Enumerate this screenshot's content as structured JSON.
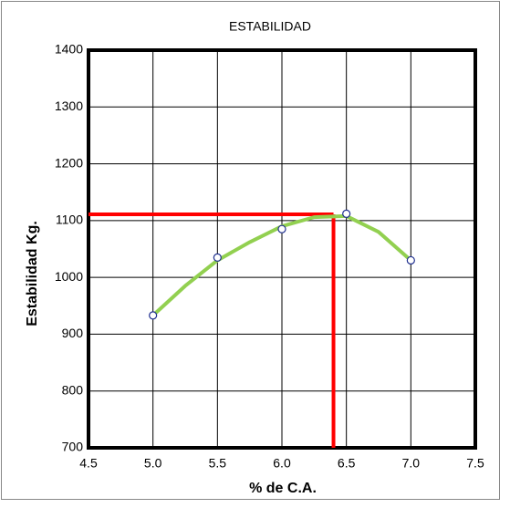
{
  "chart_data": {
    "type": "scatter",
    "title": "ESTABILIDAD",
    "x_label": "% de  C.A.",
    "y_label": "Estabilidad  Kg.",
    "xlim": [
      4.5,
      7.5
    ],
    "ylim": [
      700,
      1400
    ],
    "xticks": [
      4.5,
      {
        "value": 5,
        "label": "5.0"
      },
      5.5,
      {
        "value": 6,
        "label": "6.0"
      },
      6.5,
      {
        "value": 7,
        "label": "7.0"
      },
      7.5
    ],
    "yticks": [
      700,
      800,
      900,
      1000,
      1100,
      1200,
      1300,
      1400
    ],
    "grid": true,
    "series": [
      {
        "color": "#1f2f8f",
        "x": [
          5.0,
          5.5,
          6.0,
          6.5,
          7.0
        ],
        "values": [
          933,
          1035,
          1085,
          1112,
          1030
        ]
      }
    ],
    "trendline": {
      "color": "#92d050",
      "x": [
        5.0,
        5.25,
        5.5,
        5.75,
        6.0,
        6.25,
        6.5,
        6.75,
        7.0
      ],
      "values": [
        933,
        985,
        1030,
        1062,
        1090,
        1106,
        1108,
        1080,
        1030
      ]
    },
    "optimum": {
      "color": "#ff0000",
      "x": 6.4,
      "y": 1111
    }
  }
}
